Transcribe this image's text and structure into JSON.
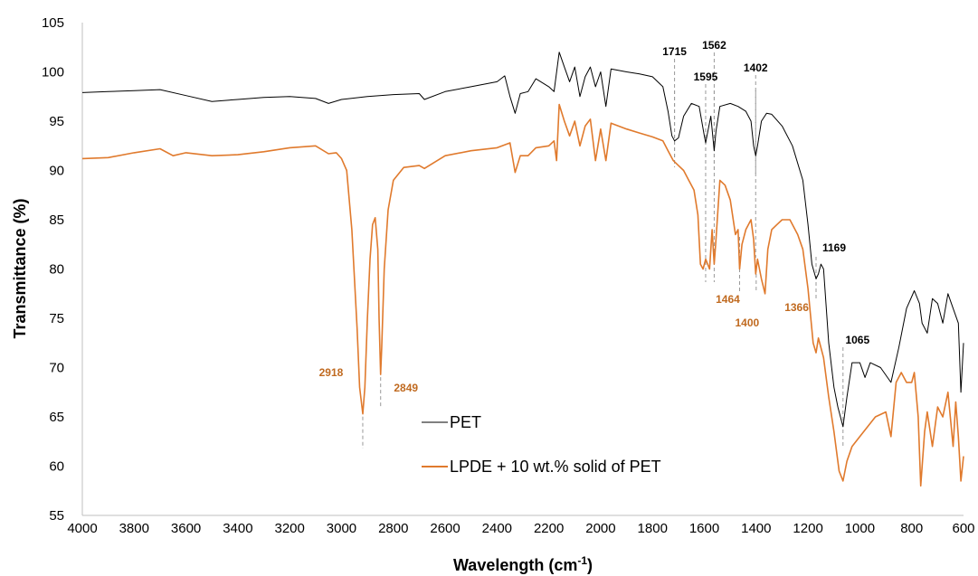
{
  "chart_data": {
    "type": "line",
    "xlabel": "Wavelength (cm",
    "xlabel_sup": "-1",
    "xlabel_end": ")",
    "ylabel": "Transmittance (%)",
    "xlim": [
      4000,
      600
    ],
    "ylim": [
      55,
      105
    ],
    "x_ticks": [
      4000,
      3800,
      3600,
      3400,
      3200,
      3000,
      2800,
      2600,
      2400,
      2200,
      2000,
      1800,
      1600,
      1400,
      1200,
      1000,
      800,
      600
    ],
    "y_ticks": [
      55,
      60,
      65,
      70,
      75,
      80,
      85,
      90,
      95,
      100,
      105
    ],
    "grid": false,
    "legend_position": "center-bottom",
    "series": [
      {
        "name": "PET",
        "color": "#000000",
        "points": [
          [
            4000,
            97.9
          ],
          [
            3900,
            98.0
          ],
          [
            3800,
            98.1
          ],
          [
            3700,
            98.2
          ],
          [
            3600,
            97.6
          ],
          [
            3500,
            97.0
          ],
          [
            3400,
            97.2
          ],
          [
            3300,
            97.4
          ],
          [
            3200,
            97.5
          ],
          [
            3100,
            97.3
          ],
          [
            3050,
            96.8
          ],
          [
            3000,
            97.2
          ],
          [
            2900,
            97.5
          ],
          [
            2800,
            97.7
          ],
          [
            2700,
            97.8
          ],
          [
            2680,
            97.2
          ],
          [
            2600,
            98.0
          ],
          [
            2500,
            98.5
          ],
          [
            2400,
            99.0
          ],
          [
            2370,
            99.6
          ],
          [
            2350,
            97.5
          ],
          [
            2330,
            95.8
          ],
          [
            2310,
            97.8
          ],
          [
            2280,
            98.0
          ],
          [
            2250,
            99.3
          ],
          [
            2200,
            98.5
          ],
          [
            2180,
            98.0
          ],
          [
            2160,
            102.0
          ],
          [
            2140,
            100.5
          ],
          [
            2120,
            99.0
          ],
          [
            2100,
            100.5
          ],
          [
            2080,
            97.5
          ],
          [
            2060,
            99.5
          ],
          [
            2040,
            100.5
          ],
          [
            2020,
            98.5
          ],
          [
            2000,
            100.0
          ],
          [
            1980,
            96.5
          ],
          [
            1960,
            100.3
          ],
          [
            1900,
            100.0
          ],
          [
            1850,
            99.8
          ],
          [
            1800,
            99.5
          ],
          [
            1760,
            98.5
          ],
          [
            1740,
            96.0
          ],
          [
            1725,
            93.5
          ],
          [
            1715,
            93.0
          ],
          [
            1700,
            93.3
          ],
          [
            1680,
            95.5
          ],
          [
            1650,
            96.8
          ],
          [
            1620,
            96.5
          ],
          [
            1600,
            93.5
          ],
          [
            1595,
            92.8
          ],
          [
            1590,
            93.5
          ],
          [
            1575,
            95.5
          ],
          [
            1562,
            92.0
          ],
          [
            1555,
            94.0
          ],
          [
            1540,
            96.5
          ],
          [
            1500,
            96.8
          ],
          [
            1470,
            96.5
          ],
          [
            1440,
            96.0
          ],
          [
            1420,
            95.0
          ],
          [
            1410,
            92.5
          ],
          [
            1402,
            91.5
          ],
          [
            1395,
            92.5
          ],
          [
            1380,
            95.0
          ],
          [
            1360,
            95.8
          ],
          [
            1340,
            95.7
          ],
          [
            1300,
            94.5
          ],
          [
            1260,
            92.5
          ],
          [
            1220,
            89.0
          ],
          [
            1200,
            84.5
          ],
          [
            1185,
            80.5
          ],
          [
            1169,
            79.0
          ],
          [
            1160,
            79.5
          ],
          [
            1150,
            80.5
          ],
          [
            1140,
            80.0
          ],
          [
            1120,
            72.5
          ],
          [
            1100,
            68.0
          ],
          [
            1085,
            66.0
          ],
          [
            1065,
            64.0
          ],
          [
            1050,
            67.0
          ],
          [
            1030,
            70.5
          ],
          [
            1000,
            70.5
          ],
          [
            980,
            69.0
          ],
          [
            960,
            70.5
          ],
          [
            920,
            70.0
          ],
          [
            880,
            68.5
          ],
          [
            850,
            72.0
          ],
          [
            820,
            76.0
          ],
          [
            790,
            77.8
          ],
          [
            770,
            76.5
          ],
          [
            760,
            74.5
          ],
          [
            740,
            73.5
          ],
          [
            720,
            77.0
          ],
          [
            700,
            76.5
          ],
          [
            680,
            74.5
          ],
          [
            660,
            77.5
          ],
          [
            640,
            76.0
          ],
          [
            620,
            74.5
          ],
          [
            610,
            67.5
          ],
          [
            600,
            72.5
          ]
        ]
      },
      {
        "name": "LPDE + 10 wt.% solid of PET",
        "color": "#E07A2D",
        "points": [
          [
            4000,
            91.2
          ],
          [
            3900,
            91.3
          ],
          [
            3800,
            91.8
          ],
          [
            3700,
            92.2
          ],
          [
            3650,
            91.5
          ],
          [
            3600,
            91.8
          ],
          [
            3500,
            91.5
          ],
          [
            3400,
            91.6
          ],
          [
            3300,
            91.9
          ],
          [
            3200,
            92.3
          ],
          [
            3100,
            92.5
          ],
          [
            3050,
            91.7
          ],
          [
            3020,
            91.8
          ],
          [
            3000,
            91.2
          ],
          [
            2980,
            90.0
          ],
          [
            2960,
            84.0
          ],
          [
            2940,
            74.0
          ],
          [
            2930,
            68.0
          ],
          [
            2918,
            65.3
          ],
          [
            2910,
            68.0
          ],
          [
            2900,
            75.0
          ],
          [
            2890,
            81.0
          ],
          [
            2880,
            84.5
          ],
          [
            2870,
            85.2
          ],
          [
            2860,
            82.0
          ],
          [
            2855,
            75.0
          ],
          [
            2849,
            69.3
          ],
          [
            2845,
            72.0
          ],
          [
            2835,
            80.0
          ],
          [
            2820,
            86.0
          ],
          [
            2800,
            89.0
          ],
          [
            2760,
            90.3
          ],
          [
            2700,
            90.5
          ],
          [
            2680,
            90.2
          ],
          [
            2600,
            91.5
          ],
          [
            2500,
            92.0
          ],
          [
            2400,
            92.3
          ],
          [
            2350,
            92.8
          ],
          [
            2330,
            89.8
          ],
          [
            2310,
            91.5
          ],
          [
            2280,
            91.5
          ],
          [
            2250,
            92.3
          ],
          [
            2200,
            92.5
          ],
          [
            2180,
            93.0
          ],
          [
            2170,
            91.0
          ],
          [
            2160,
            96.7
          ],
          [
            2140,
            95.0
          ],
          [
            2120,
            93.5
          ],
          [
            2100,
            95.0
          ],
          [
            2080,
            92.5
          ],
          [
            2060,
            94.5
          ],
          [
            2040,
            95.2
          ],
          [
            2020,
            91.0
          ],
          [
            2000,
            94.2
          ],
          [
            1980,
            91.0
          ],
          [
            1960,
            94.8
          ],
          [
            1900,
            94.2
          ],
          [
            1850,
            93.8
          ],
          [
            1800,
            93.4
          ],
          [
            1760,
            93.0
          ],
          [
            1740,
            92.0
          ],
          [
            1720,
            91.0
          ],
          [
            1700,
            90.5
          ],
          [
            1680,
            90.0
          ],
          [
            1660,
            89.0
          ],
          [
            1640,
            88.0
          ],
          [
            1625,
            85.5
          ],
          [
            1615,
            80.5
          ],
          [
            1605,
            80.0
          ],
          [
            1595,
            81.0
          ],
          [
            1580,
            80.0
          ],
          [
            1570,
            84.0
          ],
          [
            1562,
            80.5
          ],
          [
            1555,
            83.0
          ],
          [
            1540,
            89.0
          ],
          [
            1520,
            88.5
          ],
          [
            1500,
            87.0
          ],
          [
            1480,
            83.5
          ],
          [
            1470,
            84.0
          ],
          [
            1464,
            80.0
          ],
          [
            1455,
            82.5
          ],
          [
            1440,
            84.0
          ],
          [
            1420,
            85.0
          ],
          [
            1410,
            83.0
          ],
          [
            1402,
            79.5
          ],
          [
            1395,
            81.0
          ],
          [
            1380,
            79.0
          ],
          [
            1366,
            77.5
          ],
          [
            1355,
            82.0
          ],
          [
            1340,
            84.0
          ],
          [
            1320,
            84.5
          ],
          [
            1300,
            85.0
          ],
          [
            1270,
            85.0
          ],
          [
            1240,
            83.5
          ],
          [
            1220,
            82.0
          ],
          [
            1200,
            78.0
          ],
          [
            1180,
            72.5
          ],
          [
            1169,
            71.5
          ],
          [
            1160,
            73.0
          ],
          [
            1140,
            71.0
          ],
          [
            1120,
            67.0
          ],
          [
            1100,
            63.5
          ],
          [
            1080,
            59.5
          ],
          [
            1065,
            58.5
          ],
          [
            1050,
            60.5
          ],
          [
            1030,
            62.0
          ],
          [
            1000,
            63.0
          ],
          [
            970,
            64.0
          ],
          [
            940,
            65.0
          ],
          [
            900,
            65.5
          ],
          [
            880,
            63.0
          ],
          [
            860,
            68.5
          ],
          [
            840,
            69.5
          ],
          [
            820,
            68.5
          ],
          [
            800,
            68.5
          ],
          [
            790,
            69.5
          ],
          [
            775,
            65.0
          ],
          [
            765,
            58.0
          ],
          [
            750,
            63.5
          ],
          [
            740,
            65.5
          ],
          [
            720,
            62.0
          ],
          [
            700,
            66.0
          ],
          [
            680,
            65.0
          ],
          [
            660,
            67.5
          ],
          [
            640,
            62.0
          ],
          [
            630,
            66.5
          ],
          [
            620,
            63.0
          ],
          [
            610,
            58.5
          ],
          [
            600,
            61.0
          ]
        ]
      }
    ],
    "annotations": [
      {
        "label": "1715",
        "x": 1715,
        "color": "#000000"
      },
      {
        "label": "1595",
        "x": 1595,
        "color": "#000000"
      },
      {
        "label": "1562",
        "x": 1562,
        "color": "#000000"
      },
      {
        "label": "1402",
        "x": 1402,
        "color": "#000000"
      },
      {
        "label": "1169",
        "x": 1169,
        "color": "#000000"
      },
      {
        "label": "1065",
        "x": 1065,
        "color": "#000000"
      },
      {
        "label": "2918",
        "x": 2918,
        "color": "#C06A20"
      },
      {
        "label": "2849",
        "x": 2849,
        "color": "#C06A20"
      },
      {
        "label": "1464",
        "x": 1464,
        "color": "#C06A20"
      },
      {
        "label": "1400",
        "x": 1400,
        "color": "#C06A20"
      },
      {
        "label": "1366",
        "x": 1366,
        "color": "#C06A20"
      }
    ]
  }
}
